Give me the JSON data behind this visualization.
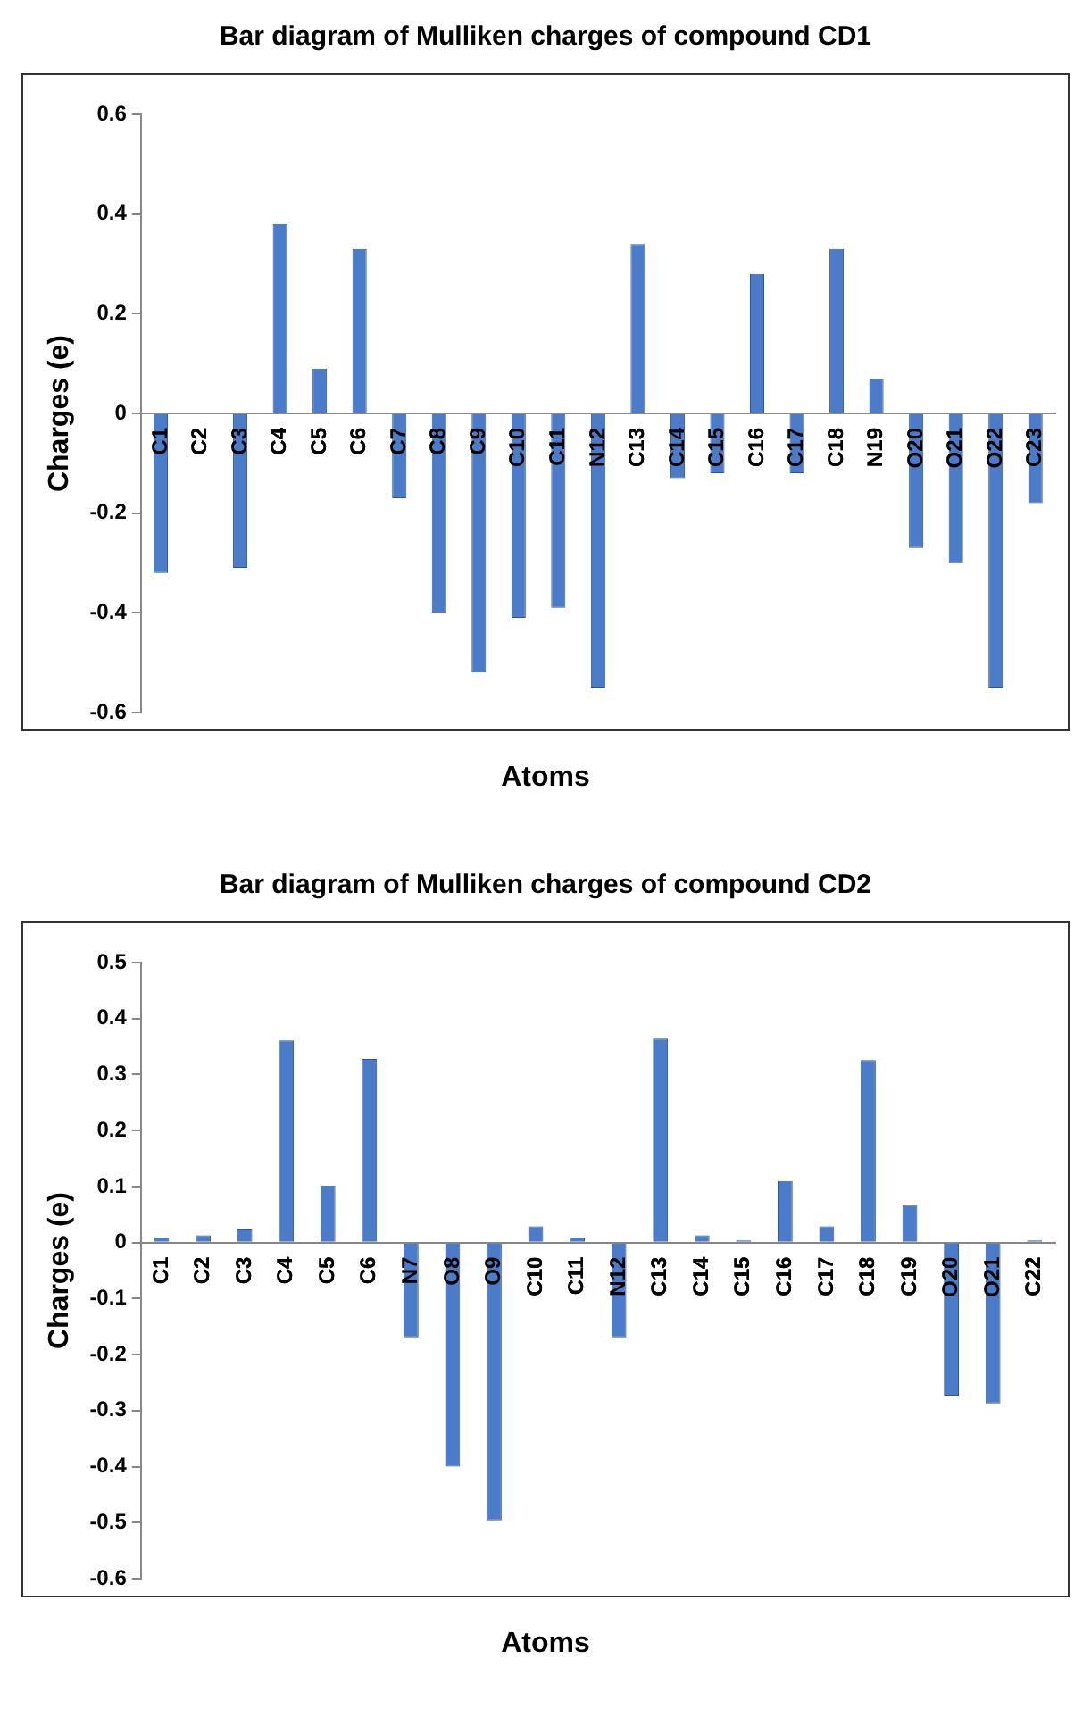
{
  "chart_data": [
    {
      "type": "bar",
      "title": "Bar diagram of Mulliken charges of compound CD1",
      "xlabel": "Atoms",
      "ylabel": "Charges (e)",
      "categories": [
        "C1",
        "C2",
        "C3",
        "C4",
        "C5",
        "C6",
        "C7",
        "C8",
        "C9",
        "C10",
        "C11",
        "N12",
        "C13",
        "C14",
        "C15",
        "C16",
        "C17",
        "C18",
        "N19",
        "O20",
        "O21",
        "O22",
        "C23"
      ],
      "values": [
        -0.32,
        -0.002,
        -0.31,
        0.38,
        0.09,
        0.33,
        -0.17,
        -0.4,
        -0.52,
        -0.41,
        -0.39,
        -0.55,
        0.34,
        -0.13,
        -0.12,
        0.28,
        -0.12,
        0.33,
        0.07,
        -0.27,
        -0.3,
        -0.55,
        -0.18
      ],
      "color": "#4a7cc9",
      "ylim": [
        -0.6,
        0.6
      ],
      "yticks": [
        -0.6,
        -0.4,
        -0.2,
        0,
        0.2,
        0.4,
        0.6
      ],
      "grid": false,
      "legend": false
    },
    {
      "type": "bar",
      "title": "Bar diagram of Mulliken charges of compound CD2",
      "xlabel": "Atoms",
      "ylabel": "Charges (e)",
      "categories": [
        "C1",
        "C2",
        "C3",
        "C4",
        "C5",
        "C6",
        "N7",
        "O8",
        "O9",
        "C10",
        "C11",
        "N12",
        "C13",
        "C14",
        "C15",
        "C16",
        "C17",
        "C18",
        "C19",
        "O20",
        "O21",
        "C22"
      ],
      "values": [
        0.009,
        0.013,
        0.025,
        0.361,
        0.102,
        0.328,
        -0.169,
        -0.4,
        -0.496,
        0.029,
        0.009,
        -0.169,
        0.364,
        0.013,
        0.004,
        0.11,
        0.029,
        0.326,
        0.067,
        -0.273,
        -0.287,
        0.004
      ],
      "color": "#4a7cc9",
      "ylim": [
        -0.6,
        0.5
      ],
      "yticks": [
        -0.6,
        -0.5,
        -0.4,
        -0.3,
        -0.2,
        -0.1,
        0,
        0.1,
        0.2,
        0.3,
        0.4,
        0.5
      ],
      "grid": false,
      "legend": false
    }
  ]
}
